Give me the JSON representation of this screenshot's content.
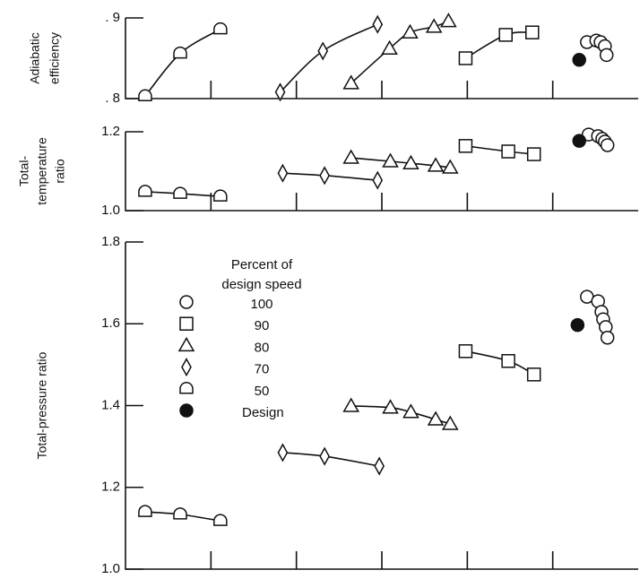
{
  "chart_data": [
    {
      "type": "line",
      "ylabel": [
        "Adiabatic",
        "efficiency"
      ],
      "xlim": [
        0,
        6
      ],
      "xticks": [
        1,
        2,
        3,
        4,
        5
      ],
      "ylim": [
        0.8,
        0.9
      ],
      "yticks": [
        {
          "value": 0.8,
          "label": ". 8"
        },
        {
          "value": 0.9,
          "label": ". 9"
        }
      ],
      "series": [
        {
          "marker": "dhalf",
          "connected": true,
          "x": [
            0.23,
            0.64,
            1.11
          ],
          "values": [
            0.803,
            0.856,
            0.886
          ]
        },
        {
          "marker": "diamond",
          "connected": true,
          "x": [
            1.81,
            2.31,
            2.95
          ],
          "values": [
            0.808,
            0.859,
            0.892
          ]
        },
        {
          "marker": "triangle",
          "connected": true,
          "x": [
            2.64,
            3.09,
            3.33,
            3.61,
            3.78
          ],
          "values": [
            0.819,
            0.862,
            0.882,
            0.889,
            0.896
          ]
        },
        {
          "marker": "square",
          "connected": true,
          "x": [
            3.98,
            4.45,
            4.76
          ],
          "values": [
            0.85,
            0.879,
            0.882
          ]
        },
        {
          "marker": "circle",
          "connected": false,
          "x": [
            5.4,
            5.51,
            5.56,
            5.61,
            5.63
          ],
          "values": [
            0.87,
            0.872,
            0.87,
            0.865,
            0.854
          ]
        },
        {
          "marker": "filled",
          "connected": false,
          "x": [
            5.31
          ],
          "values": [
            0.848
          ]
        }
      ]
    },
    {
      "type": "line",
      "ylabel": [
        "Total-",
        "temperature",
        "ratio"
      ],
      "xlim": [
        0,
        6
      ],
      "xticks": [
        1,
        2,
        3,
        4,
        5
      ],
      "ylim": [
        1.0,
        1.2
      ],
      "yticks": [
        {
          "value": 1.0,
          "label": "1.0"
        },
        1.2
      ],
      "series": [
        {
          "marker": "dhalf",
          "connected": true,
          "x": [
            0.23,
            0.64,
            1.11
          ],
          "values": [
            1.048,
            1.043,
            1.036
          ]
        },
        {
          "marker": "diamond",
          "connected": true,
          "x": [
            1.84,
            2.33,
            2.95
          ],
          "values": [
            1.095,
            1.089,
            1.077
          ]
        },
        {
          "marker": "triangle",
          "connected": true,
          "x": [
            2.64,
            3.1,
            3.34,
            3.63,
            3.8
          ],
          "values": [
            1.134,
            1.125,
            1.12,
            1.114,
            1.109
          ]
        },
        {
          "marker": "square",
          "connected": true,
          "x": [
            3.98,
            4.48,
            4.78
          ],
          "values": [
            1.164,
            1.15,
            1.143
          ]
        },
        {
          "marker": "circle",
          "connected": false,
          "x": [
            5.42,
            5.53,
            5.58,
            5.61,
            5.64
          ],
          "values": [
            1.193,
            1.189,
            1.182,
            1.175,
            1.166
          ]
        },
        {
          "marker": "filled",
          "connected": false,
          "x": [
            5.31
          ],
          "values": [
            1.177
          ]
        }
      ]
    },
    {
      "type": "line",
      "ylabel": [
        "Total-pressure ratio"
      ],
      "xlim": [
        0,
        6
      ],
      "xticks": [
        1,
        2,
        3,
        4,
        5
      ],
      "ylim": [
        1.0,
        1.8
      ],
      "yticks": [
        {
          "value": 1.0,
          "label": "1.0"
        },
        1.2,
        1.4,
        1.6,
        1.8
      ],
      "legend_title": [
        "Percent of",
        "design speed"
      ],
      "series": [
        {
          "name": "100",
          "marker": "circle",
          "connected": false,
          "x": [
            5.4,
            5.53,
            5.57,
            5.59,
            5.62,
            5.64
          ],
          "values": [
            1.666,
            1.655,
            1.629,
            1.611,
            1.592,
            1.566
          ]
        },
        {
          "name": "90",
          "marker": "square",
          "connected": true,
          "x": [
            3.98,
            4.48,
            4.78
          ],
          "values": [
            1.533,
            1.509,
            1.476
          ]
        },
        {
          "name": "80",
          "marker": "triangle",
          "connected": true,
          "x": [
            2.64,
            3.1,
            3.34,
            3.63,
            3.8
          ],
          "values": [
            1.399,
            1.395,
            1.384,
            1.366,
            1.355
          ]
        },
        {
          "name": "70",
          "marker": "diamond",
          "connected": true,
          "x": [
            1.84,
            2.33,
            2.97
          ],
          "values": [
            1.285,
            1.276,
            1.252
          ]
        },
        {
          "name": "50",
          "marker": "dhalf",
          "connected": true,
          "x": [
            0.23,
            0.64,
            1.11
          ],
          "values": [
            1.14,
            1.134,
            1.118
          ]
        },
        {
          "name": "Design",
          "marker": "filled",
          "connected": false,
          "x": [
            5.29
          ],
          "values": [
            1.597
          ]
        }
      ]
    }
  ]
}
